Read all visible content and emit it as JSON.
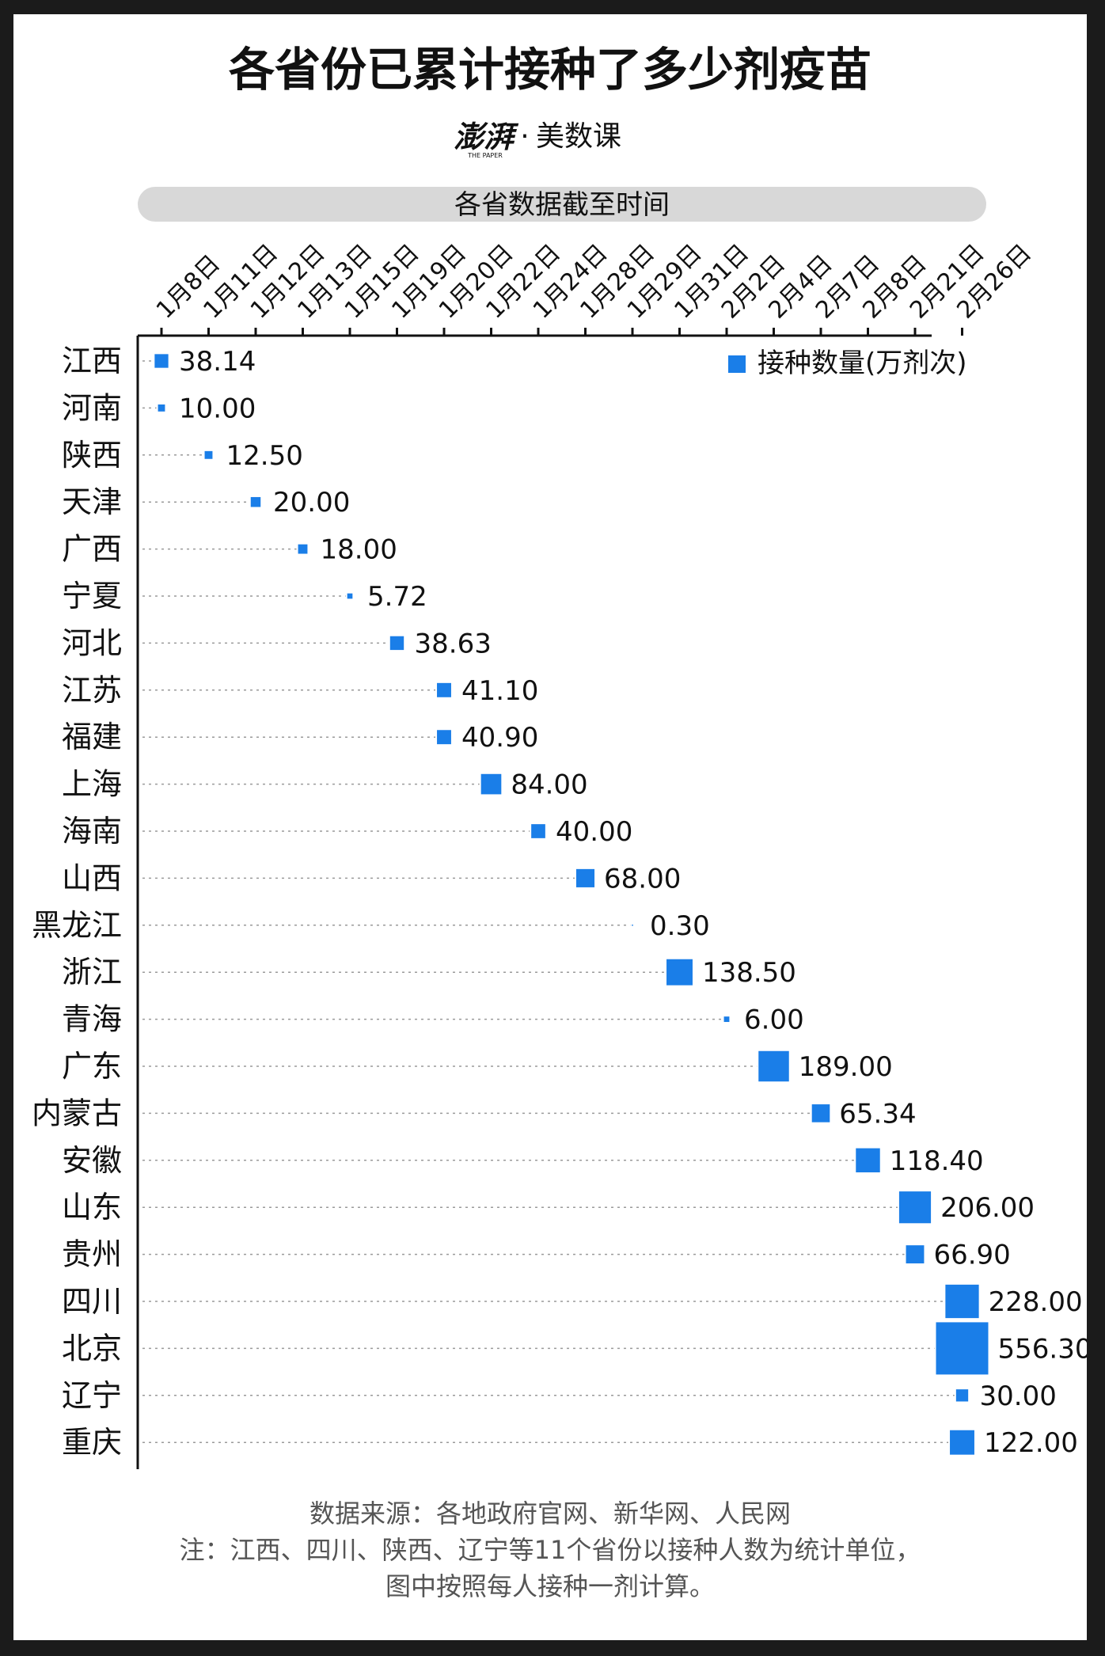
{
  "title": "各省份已累计接种了多少剂疫苗",
  "brand": {
    "logo_text": "澎湃",
    "logo_sub": "THE PAPER",
    "dot": "·",
    "name": "美数课"
  },
  "header_band": "各省数据截至时间",
  "legend_label": "接种数量(万剂次)",
  "source": "数据来源：各地政府官网、新华网、人民网",
  "note_line1": "注：江西、四川、陕西、辽宁等11个省份以接种人数为统计单位，",
  "note_line2": "图中按照每人接种一剂计算。",
  "colors": {
    "marker": "#1a7ee8",
    "axis": "#111111",
    "dots": "#9a9a9a",
    "band": "#d8d8d8",
    "text": "#111111",
    "muted": "#555555"
  },
  "chart_data": {
    "type": "scatter",
    "x_categories": [
      "1月8日",
      "1月11日",
      "1月12日",
      "1月13日",
      "1月15日",
      "1月19日",
      "1月20日",
      "1月22日",
      "1月24日",
      "1月28日",
      "1月29日",
      "1月31日",
      "2月2日",
      "2月4日",
      "2月7日",
      "2月8日",
      "2月21日",
      "2月26日"
    ],
    "series": [
      {
        "name": "接种数量(万剂次)",
        "points": [
          {
            "province": "江西",
            "date": "1月8日",
            "value": 38.14,
            "label": "38.14"
          },
          {
            "province": "河南",
            "date": "1月8日",
            "value": 10.0,
            "label": "10.00"
          },
          {
            "province": "陕西",
            "date": "1月11日",
            "value": 12.5,
            "label": "12.50"
          },
          {
            "province": "天津",
            "date": "1月12日",
            "value": 20.0,
            "label": "20.00"
          },
          {
            "province": "广西",
            "date": "1月13日",
            "value": 18.0,
            "label": "18.00"
          },
          {
            "province": "宁夏",
            "date": "1月15日",
            "value": 5.72,
            "label": "5.72"
          },
          {
            "province": "河北",
            "date": "1月19日",
            "value": 38.63,
            "label": "38.63"
          },
          {
            "province": "江苏",
            "date": "1月20日",
            "value": 41.1,
            "label": "41.10"
          },
          {
            "province": "福建",
            "date": "1月20日",
            "value": 40.9,
            "label": "40.90"
          },
          {
            "province": "上海",
            "date": "1月22日",
            "value": 84.0,
            "label": "84.00"
          },
          {
            "province": "海南",
            "date": "1月24日",
            "value": 40.0,
            "label": "40.00"
          },
          {
            "province": "山西",
            "date": "1月28日",
            "value": 68.0,
            "label": "68.00"
          },
          {
            "province": "黑龙江",
            "date": "1月29日",
            "value": 0.3,
            "label": "0.30"
          },
          {
            "province": "浙江",
            "date": "1月31日",
            "value": 138.5,
            "label": "138.50"
          },
          {
            "province": "青海",
            "date": "2月2日",
            "value": 6.0,
            "label": "6.00"
          },
          {
            "province": "广东",
            "date": "2月4日",
            "value": 189.0,
            "label": "189.00"
          },
          {
            "province": "内蒙古",
            "date": "2月7日",
            "value": 65.34,
            "label": "65.34"
          },
          {
            "province": "安徽",
            "date": "2月8日",
            "value": 118.4,
            "label": "118.40"
          },
          {
            "province": "山东",
            "date": "2月21日",
            "value": 206.0,
            "label": "206.00"
          },
          {
            "province": "贵州",
            "date": "2月21日",
            "value": 66.9,
            "label": "66.90"
          },
          {
            "province": "四川",
            "date": "2月26日",
            "value": 228.0,
            "label": "228.00"
          },
          {
            "province": "北京",
            "date": "2月26日",
            "value": 556.3,
            "label": "556.30"
          },
          {
            "province": "辽宁",
            "date": "2月26日",
            "value": 30.0,
            "label": "30.00"
          },
          {
            "province": "重庆",
            "date": "2月26日",
            "value": 122.0,
            "label": "122.00"
          }
        ]
      }
    ],
    "marker": "square, area proportional to value",
    "legend_position": "top-right",
    "grid": "dotted row guide lines"
  }
}
